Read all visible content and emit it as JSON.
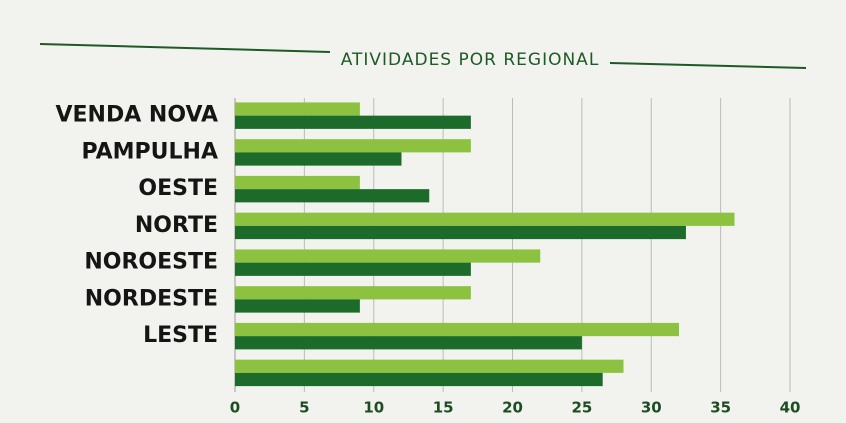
{
  "chart_data": {
    "type": "hbar",
    "title": "ATIVIDADES POR REGIONAL",
    "categories": [
      "VENDA NOVA",
      "PAMPULHA",
      "OESTE",
      "NORTE",
      "NOROESTE",
      "NORDESTE",
      "LESTE",
      null
    ],
    "series": [
      {
        "color": "#8cc23f",
        "values": [
          9,
          17,
          9,
          36,
          22,
          17,
          32,
          28
        ]
      },
      {
        "color": "#1d6b2a",
        "values": [
          17,
          12,
          14,
          32.5,
          17,
          9,
          25,
          26.5
        ]
      }
    ],
    "xlim": [
      0,
      40
    ],
    "xticks": [
      0,
      5,
      10,
      15,
      20,
      25,
      30,
      35,
      40
    ],
    "grid": true
  }
}
